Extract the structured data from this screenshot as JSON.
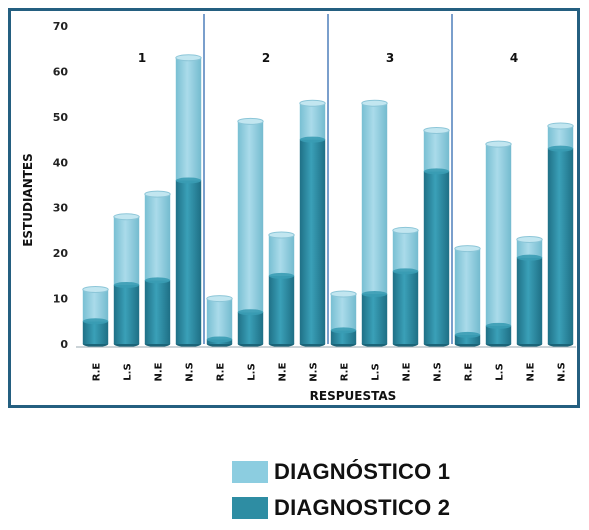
{
  "chart_data": {
    "type": "bar",
    "stacked": true,
    "xlabel": "RESPUESTAS",
    "ylabel": "ESTUDIANTES",
    "ylim": [
      0,
      70
    ],
    "yticks": [
      "0",
      "10",
      "20",
      "30",
      "40",
      "50",
      "60",
      "70"
    ],
    "groups": [
      "1",
      "2",
      "3",
      "4"
    ],
    "categories": [
      "R.E",
      "L.S",
      "N.E",
      "N.S",
      "R.E",
      "L.S",
      "N.E",
      "N.S",
      "R.E",
      "L.S",
      "N.E",
      "N.S",
      "R.E",
      "L.S",
      "N.E",
      "N.S"
    ],
    "series": [
      {
        "name": "DIAGNOSTICO 2",
        "color": "#2e8da3",
        "values": [
          5,
          13,
          14,
          36,
          1,
          7,
          15,
          45,
          3,
          11,
          16,
          38,
          2,
          4,
          19,
          43
        ]
      },
      {
        "name": "DIAGNÓSTICO 1",
        "color": "#8ccde0",
        "values": [
          7,
          15,
          19,
          27,
          9,
          42,
          9,
          8,
          8,
          42,
          9,
          9,
          19,
          40,
          4,
          5
        ]
      }
    ],
    "grid": false,
    "legend_position": "bottom"
  },
  "legend": {
    "items": [
      {
        "label": "DIAGNÓSTICO 1",
        "color": "#8ccde0"
      },
      {
        "label": "DIAGNOSTICO 2",
        "color": "#2e8da3"
      }
    ]
  },
  "colors": {
    "frame": "#245f80",
    "divider": "#7a9fcc"
  }
}
